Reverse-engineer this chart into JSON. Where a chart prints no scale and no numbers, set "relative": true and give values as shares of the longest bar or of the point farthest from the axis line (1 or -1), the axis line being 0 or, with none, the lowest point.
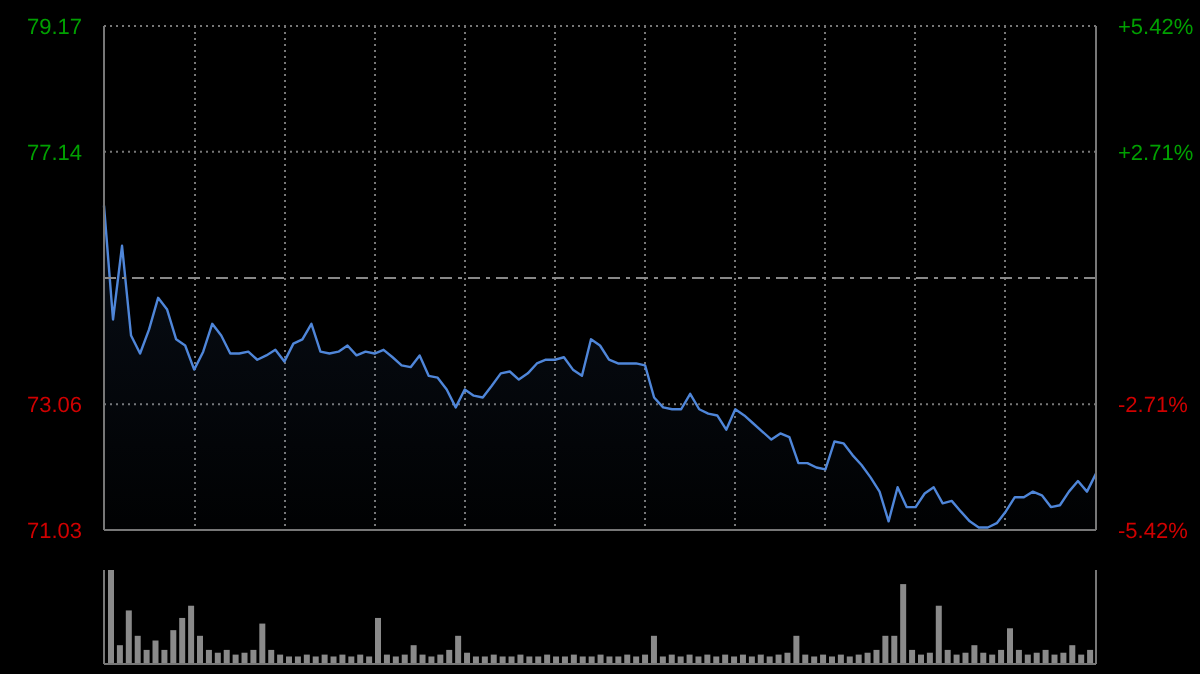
{
  "chart_data": [
    {
      "type": "area",
      "categories": [
        null,
        null,
        null,
        null,
        null,
        null,
        null,
        null,
        null,
        null,
        null,
        null,
        null,
        null,
        null,
        null,
        null,
        null,
        null,
        null,
        null,
        null,
        null,
        null,
        null,
        null,
        null,
        null,
        null,
        null,
        null,
        null,
        null,
        null,
        null,
        null,
        null,
        null,
        null,
        null,
        null,
        null,
        null,
        null,
        null,
        null,
        null,
        null,
        null,
        null,
        null,
        null,
        null,
        null,
        null,
        null,
        null,
        null,
        null,
        null,
        null,
        null,
        null,
        null,
        null,
        null,
        null,
        null,
        null,
        null,
        null,
        null,
        null,
        null,
        null,
        null,
        null,
        null,
        null,
        null,
        null,
        null,
        null,
        null,
        null,
        null,
        null,
        null,
        null,
        null,
        null,
        null,
        null,
        null,
        null,
        null,
        null,
        null,
        null,
        null,
        null,
        null,
        null,
        null,
        null,
        null,
        null,
        null,
        null,
        null,
        null
      ],
      "series": [
        {
          "color": "#4f86d9",
          "values": [
            76.27,
            74.43,
            75.62,
            74.17,
            73.88,
            74.27,
            74.78,
            74.59,
            74.11,
            74.01,
            73.62,
            73.91,
            74.36,
            74.17,
            73.88,
            73.88,
            73.91,
            73.78,
            73.85,
            73.94,
            73.75,
            74.04,
            74.11,
            74.36,
            73.91,
            73.88,
            73.91,
            74.01,
            73.85,
            73.91,
            73.88,
            73.94,
            73.82,
            73.69,
            73.66,
            73.85,
            73.52,
            73.49,
            73.3,
            73.01,
            73.3,
            73.2,
            73.17,
            73.36,
            73.56,
            73.59,
            73.46,
            73.56,
            73.72,
            73.78,
            73.78,
            73.82,
            73.62,
            73.52,
            74.11,
            74.01,
            73.78,
            73.72,
            73.72,
            73.72,
            73.69,
            73.17,
            73.01,
            72.98,
            72.98,
            73.23,
            72.98,
            72.91,
            72.88,
            72.65,
            72.98,
            72.88,
            72.75,
            72.62,
            72.49,
            72.59,
            72.53,
            72.11,
            72.11,
            72.04,
            72.01,
            72.46,
            72.43,
            72.24,
            72.08,
            71.88,
            71.65,
            71.17,
            71.72,
            71.4,
            71.4,
            71.62,
            71.72,
            71.46,
            71.5,
            71.33,
            71.17,
            71.07,
            71.07,
            71.14,
            71.33,
            71.56,
            71.56,
            71.65,
            71.59,
            71.4,
            71.43,
            71.65,
            71.82,
            71.65,
            71.94
          ]
        }
      ],
      "ylim": [
        71.03,
        79.17
      ],
      "yticks": [
        79.17,
        77.14,
        73.06,
        71.03
      ],
      "y2lim": [
        -5.42,
        5.42
      ],
      "y2ticks": [
        {
          "value": 5.42,
          "label": "+5.42%"
        },
        {
          "value": 2.71,
          "label": "+2.71%"
        },
        {
          "value": -2.71,
          "label": "-2.71%"
        },
        {
          "value": -5.42,
          "label": "-5.42%"
        }
      ],
      "ref_lines": [
        {
          "axis": "y",
          "value": 75.1,
          "line_style": "dashed",
          "color": "#888888"
        }
      ],
      "grid": true,
      "tick_labels": "y"
    },
    {
      "type": "bar",
      "relative": true,
      "tick_labels": false,
      "categories": [
        null,
        null,
        null,
        null,
        null,
        null,
        null,
        null,
        null,
        null,
        null,
        null,
        null,
        null,
        null,
        null,
        null,
        null,
        null,
        null,
        null,
        null,
        null,
        null,
        null,
        null,
        null,
        null,
        null,
        null,
        null,
        null,
        null,
        null,
        null,
        null,
        null,
        null,
        null,
        null,
        null,
        null,
        null,
        null,
        null,
        null,
        null,
        null,
        null,
        null,
        null,
        null,
        null,
        null,
        null,
        null,
        null,
        null,
        null,
        null,
        null,
        null,
        null,
        null,
        null,
        null,
        null,
        null,
        null,
        null,
        null,
        null,
        null,
        null,
        null,
        null,
        null,
        null,
        null,
        null,
        null,
        null,
        null,
        null,
        null,
        null,
        null,
        null,
        null,
        null,
        null,
        null,
        null,
        null,
        null,
        null,
        null,
        null,
        null,
        null,
        null,
        null,
        null,
        null,
        null,
        null,
        null,
        null,
        null,
        null,
        null
      ],
      "series": [
        {
          "color": "#8a8a8a",
          "values": [
            1,
            0.2,
            0.57,
            0.3,
            0.15,
            0.25,
            0.15,
            0.36,
            0.49,
            0.62,
            0.3,
            0.15,
            0.12,
            0.15,
            0.1,
            0.12,
            0.15,
            0.43,
            0.15,
            0.1,
            0.08,
            0.08,
            0.1,
            0.08,
            0.1,
            0.08,
            0.1,
            0.08,
            0.1,
            0.08,
            0.49,
            0.1,
            0.08,
            0.1,
            0.2,
            0.1,
            0.08,
            0.1,
            0.15,
            0.3,
            0.12,
            0.08,
            0.08,
            0.1,
            0.08,
            0.08,
            0.1,
            0.08,
            0.08,
            0.1,
            0.08,
            0.08,
            0.1,
            0.08,
            0.08,
            0.1,
            0.08,
            0.08,
            0.1,
            0.08,
            0.1,
            0.3,
            0.08,
            0.1,
            0.08,
            0.1,
            0.08,
            0.1,
            0.08,
            0.1,
            0.08,
            0.1,
            0.08,
            0.1,
            0.08,
            0.1,
            0.12,
            0.3,
            0.1,
            0.08,
            0.1,
            0.08,
            0.1,
            0.08,
            0.1,
            0.12,
            0.15,
            0.3,
            0.3,
            0.85,
            0.15,
            0.1,
            0.12,
            0.62,
            0.15,
            0.1,
            0.12,
            0.2,
            0.12,
            0.1,
            0.15,
            0.38,
            0.15,
            0.1,
            0.12,
            0.15,
            0.1,
            0.12,
            0.2,
            0.1,
            0.15
          ]
        }
      ]
    }
  ]
}
